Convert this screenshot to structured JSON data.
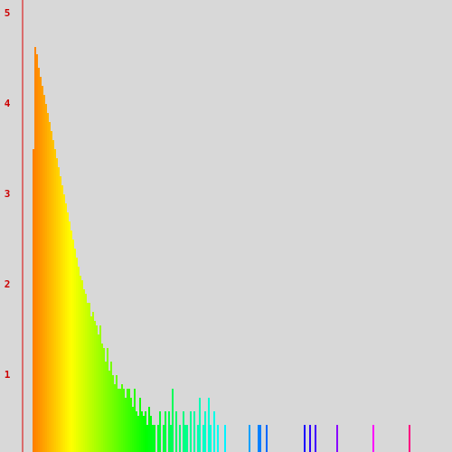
{
  "chart_data": {
    "type": "bar",
    "x": [
      11,
      13,
      15,
      17,
      19,
      21,
      23,
      25,
      27,
      29,
      31,
      33,
      35,
      37,
      39,
      41,
      43,
      45,
      47,
      49,
      51,
      53,
      55,
      57,
      59,
      61,
      63,
      65,
      67,
      69,
      71,
      73,
      75,
      77,
      79,
      81,
      83,
      85,
      87,
      89,
      91,
      93,
      95,
      97,
      99,
      101,
      103,
      105,
      107,
      109,
      111,
      113,
      115,
      117,
      119,
      121,
      123,
      125,
      127,
      129,
      131,
      133,
      135,
      137,
      139,
      141,
      143,
      145,
      149,
      151,
      155,
      157,
      161,
      163,
      165,
      169,
      173,
      177,
      179,
      181,
      185,
      189,
      193,
      195,
      199,
      201,
      205,
      207,
      211,
      215,
      223,
      250,
      260,
      262,
      269,
      311,
      317,
      323,
      347,
      387,
      427
    ],
    "values": [
      3.5,
      4.63,
      4.55,
      4.4,
      4.3,
      4.2,
      4.1,
      4.0,
      3.9,
      3.8,
      3.7,
      3.6,
      3.5,
      3.4,
      3.3,
      3.2,
      3.1,
      3.0,
      2.9,
      2.8,
      2.7,
      2.6,
      2.5,
      2.4,
      2.3,
      2.2,
      2.1,
      2.05,
      1.95,
      1.9,
      1.8,
      1.8,
      1.65,
      1.7,
      1.6,
      1.55,
      1.45,
      1.55,
      1.35,
      1.3,
      1.15,
      1.3,
      1.05,
      1.15,
      1.0,
      0.9,
      1.0,
      0.85,
      0.85,
      0.9,
      0.85,
      0.75,
      0.85,
      0.85,
      0.75,
      0.65,
      0.85,
      0.6,
      0.55,
      0.75,
      0.6,
      0.55,
      0.6,
      0.45,
      0.65,
      0.55,
      0.45,
      0.45,
      0.45,
      0.6,
      0.45,
      0.6,
      0.6,
      0.45,
      0.85,
      0.6,
      0.45,
      0.6,
      0.45,
      0.45,
      0.6,
      0.6,
      0.45,
      0.75,
      0.45,
      0.6,
      0.75,
      0.45,
      0.6,
      0.45,
      0.45,
      0.45,
      0.45,
      0.45,
      0.45,
      0.45,
      0.45,
      0.45,
      0.45,
      0.45,
      0.45
    ],
    "xlim": [
      0,
      475
    ],
    "ylim": [
      0.15,
      5.15
    ],
    "yticks": [
      1,
      2,
      3,
      4,
      5
    ],
    "hue_range": [
      30,
      330
    ],
    "axis_color": "#dd0000"
  }
}
